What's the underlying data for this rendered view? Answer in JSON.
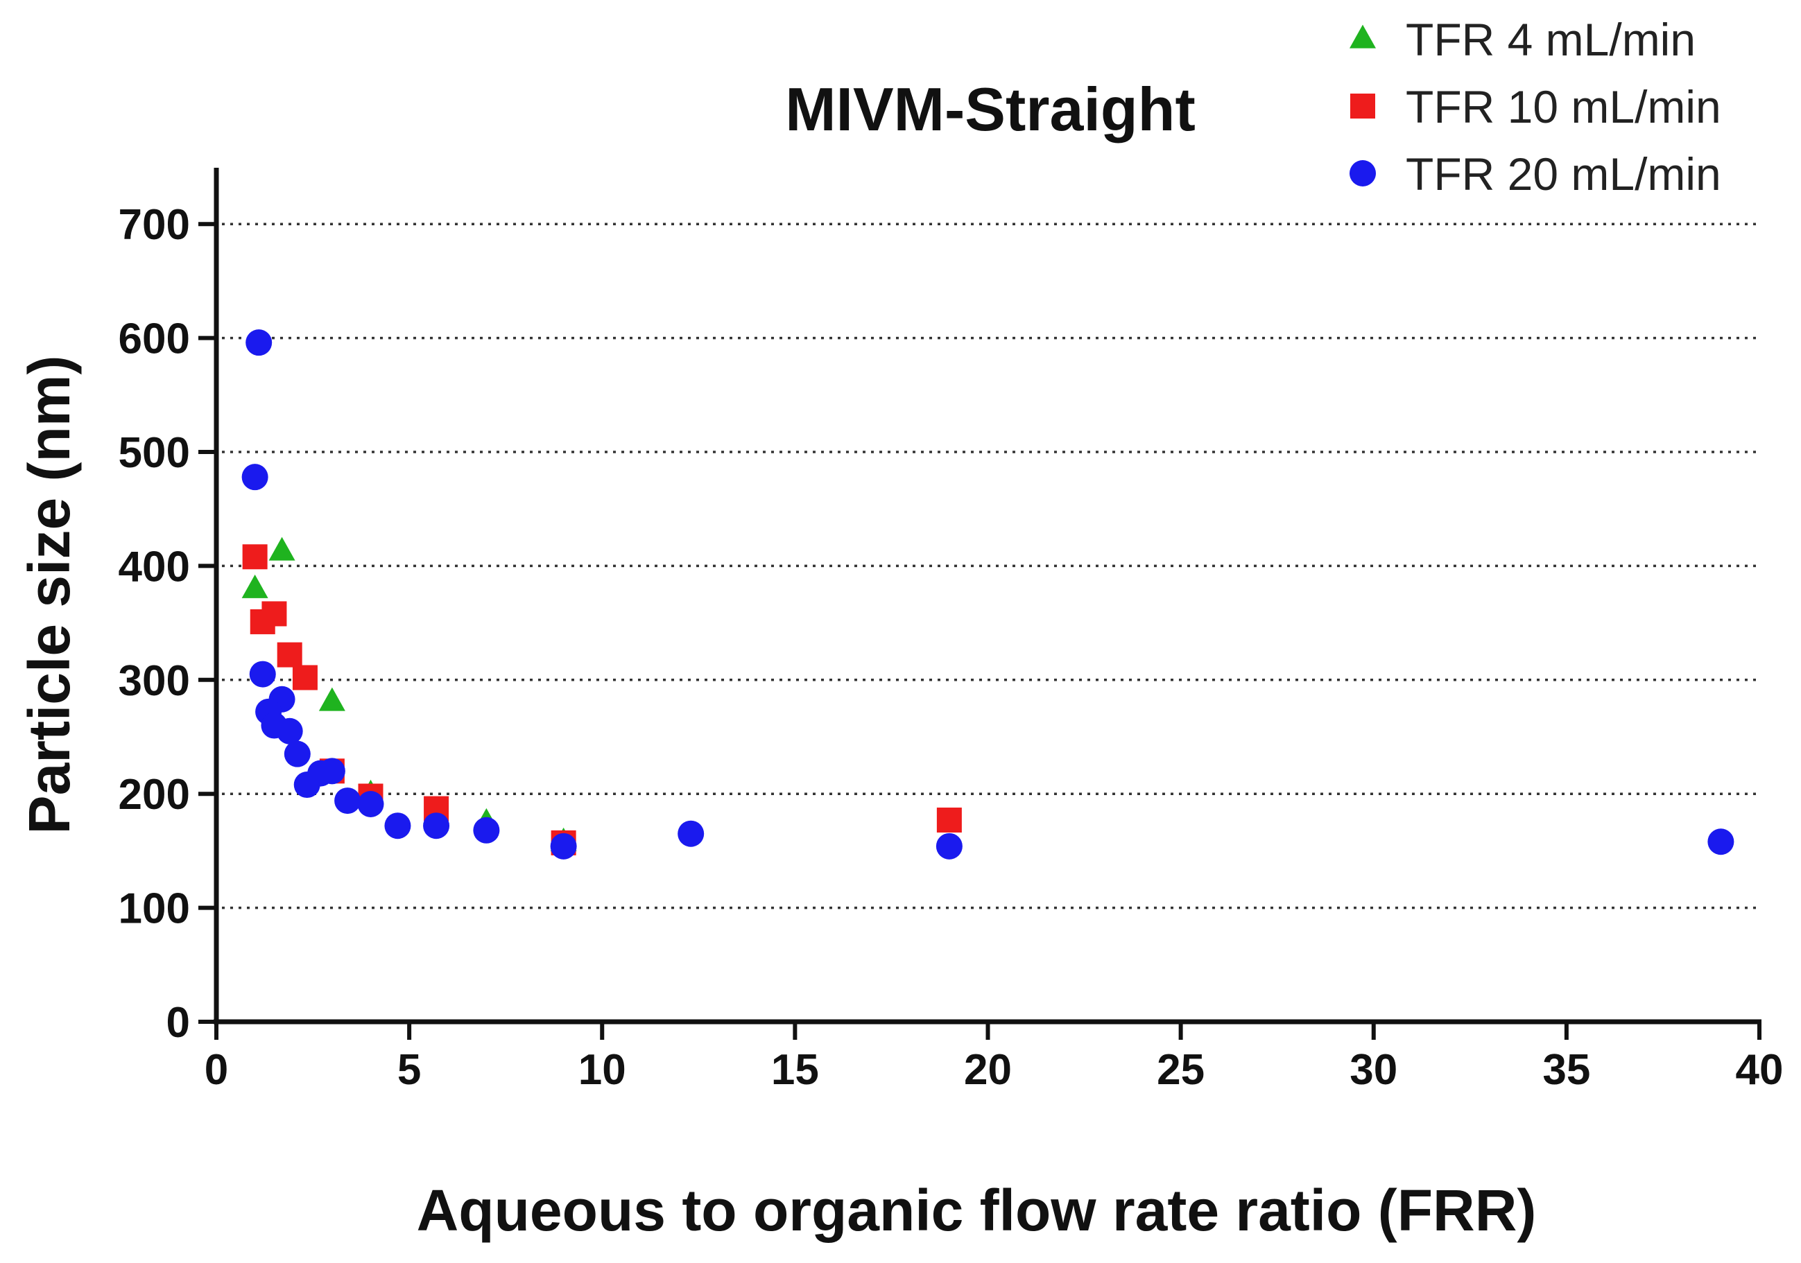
{
  "chart_data": {
    "type": "scatter",
    "title": "MIVM-Straight",
    "xlabel": "Aqueous to organic flow rate ratio (FRR)",
    "ylabel": "Particle size (nm)",
    "xlim": [
      0,
      40
    ],
    "ylim": [
      0,
      750
    ],
    "xticks": [
      0,
      5,
      10,
      15,
      20,
      25,
      30,
      35,
      40
    ],
    "yticks": [
      0,
      100,
      200,
      300,
      400,
      500,
      600,
      700
    ],
    "grid": "horizontal-dotted",
    "legend_position": "top-right",
    "series": [
      {
        "name": "TFR 4 mL/min",
        "marker": "triangle",
        "color": "#1fb31f",
        "points": [
          {
            "x": 1.0,
            "y": 380
          },
          {
            "x": 1.7,
            "y": 413
          },
          {
            "x": 3.0,
            "y": 281
          },
          {
            "x": 4.0,
            "y": 200
          },
          {
            "x": 5.7,
            "y": 182
          },
          {
            "x": 7.0,
            "y": 175
          },
          {
            "x": 9.0,
            "y": 158
          }
        ]
      },
      {
        "name": "TFR 10 mL/min",
        "marker": "square",
        "color": "#ee1c1c",
        "points": [
          {
            "x": 1.0,
            "y": 408
          },
          {
            "x": 1.2,
            "y": 351
          },
          {
            "x": 1.5,
            "y": 358
          },
          {
            "x": 1.9,
            "y": 322
          },
          {
            "x": 2.3,
            "y": 302
          },
          {
            "x": 3.0,
            "y": 220
          },
          {
            "x": 4.0,
            "y": 198
          },
          {
            "x": 5.7,
            "y": 187
          },
          {
            "x": 9.0,
            "y": 157
          },
          {
            "x": 19.0,
            "y": 177
          }
        ]
      },
      {
        "name": "TFR 20 mL/min",
        "marker": "circle",
        "color": "#1a1aee",
        "points": [
          {
            "x": 1.1,
            "y": 596
          },
          {
            "x": 1.0,
            "y": 478
          },
          {
            "x": 1.2,
            "y": 305
          },
          {
            "x": 1.7,
            "y": 283
          },
          {
            "x": 1.35,
            "y": 272
          },
          {
            "x": 1.5,
            "y": 260
          },
          {
            "x": 1.9,
            "y": 255
          },
          {
            "x": 2.1,
            "y": 235
          },
          {
            "x": 2.35,
            "y": 208
          },
          {
            "x": 2.7,
            "y": 218
          },
          {
            "x": 3.0,
            "y": 220
          },
          {
            "x": 3.4,
            "y": 194
          },
          {
            "x": 4.0,
            "y": 191
          },
          {
            "x": 4.7,
            "y": 172
          },
          {
            "x": 5.7,
            "y": 172
          },
          {
            "x": 7.0,
            "y": 168
          },
          {
            "x": 9.0,
            "y": 154
          },
          {
            "x": 12.3,
            "y": 165
          },
          {
            "x": 19.0,
            "y": 154
          },
          {
            "x": 39.0,
            "y": 158
          }
        ]
      }
    ]
  }
}
